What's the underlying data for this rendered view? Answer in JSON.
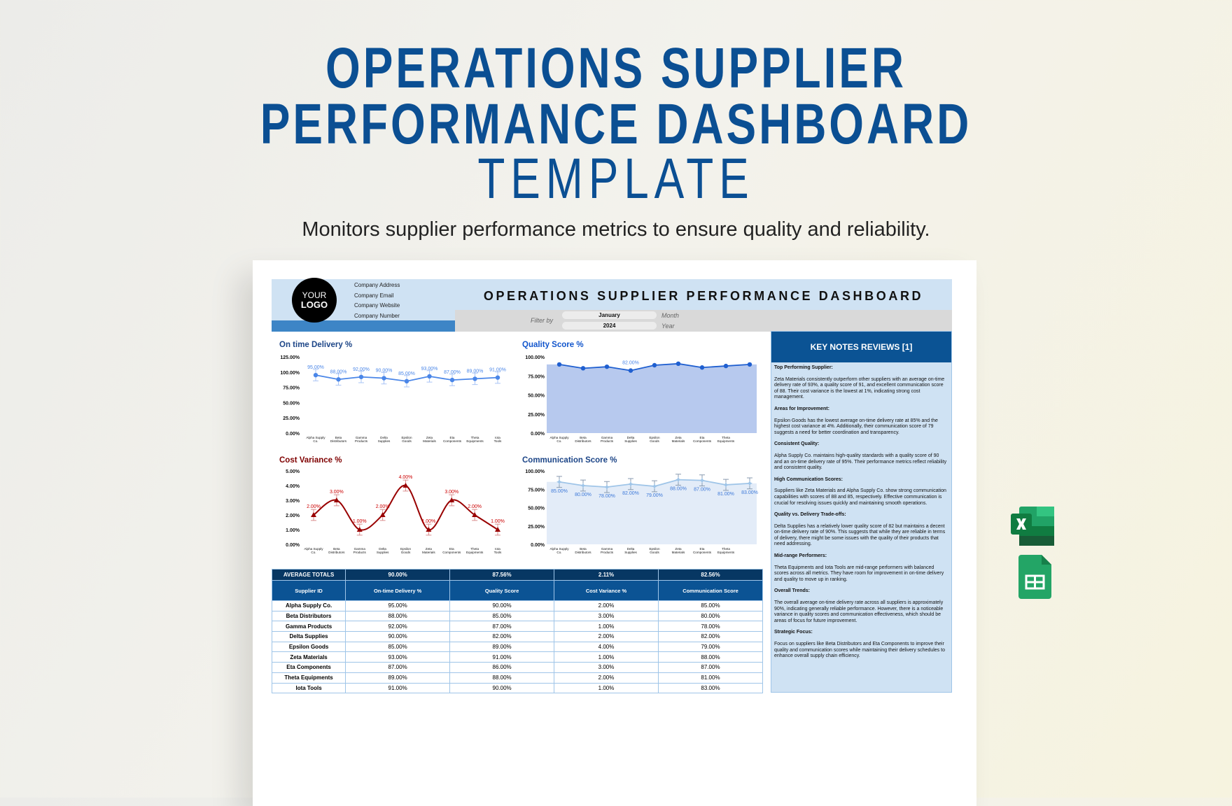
{
  "hero": {
    "title_line1": "OPERATIONS SUPPLIER",
    "title_line2": "PERFORMANCE DASHBOARD",
    "title_line3": "TEMPLATE",
    "subtitle": "Monitors supplier performance metrics to ensure quality and reliability."
  },
  "header": {
    "logo_line1": "YOUR",
    "logo_line2": "LOGO",
    "company": [
      "Company Address",
      "Company Email",
      "Company Website",
      "Company Number"
    ],
    "title": "OPERATIONS SUPPLIER PERFORMANCE DASHBOARD"
  },
  "filter": {
    "label": "Filter by",
    "month": "January",
    "month_label": "Month",
    "year": "2024",
    "year_label": "Year"
  },
  "colors": {
    "brand": "#0b5394",
    "header_bg": "#cfe2f3",
    "cost_red": "#990000",
    "quality_blue": "#1f5fd0"
  },
  "chart_data": [
    {
      "type": "line",
      "title": "On time Delivery %",
      "title_color": "#1c4587",
      "categories": [
        "Alpha Supply Co.",
        "Beta Distributors",
        "Gamma Products",
        "Delta Supplies",
        "Epsilon Goods",
        "Zeta Materials",
        "Eta Components",
        "Theta Equipments",
        "Iota Tools"
      ],
      "values": [
        95,
        88,
        92,
        90,
        85,
        93,
        87,
        89,
        91
      ],
      "ylim": [
        0,
        125
      ],
      "yticks": [
        "0.00%",
        "25.00%",
        "50.00%",
        "75.00%",
        "100.00%",
        "125.00%"
      ],
      "data_labels": [
        "95.00%",
        "88.00%",
        "92.00%",
        "90.00%",
        "85.00%",
        "93.00%",
        "87.00%",
        "89.00%",
        "91.00%"
      ],
      "error_bars": true,
      "color": "#4a86e8"
    },
    {
      "type": "area",
      "title": "Quality Score %",
      "title_color": "#1155cc",
      "categories": [
        "Alpha Supply Co.",
        "Beta Distributors",
        "Gamma Products",
        "Delta Supplies",
        "Epsilon Goods",
        "Zeta Materials",
        "Eta Components",
        "Theta Equipments",
        ""
      ],
      "values": [
        90,
        85,
        87,
        82,
        89,
        91,
        86,
        88,
        90
      ],
      "ylim": [
        0,
        100
      ],
      "yticks": [
        "0.00%",
        "25.00%",
        "50.00%",
        "75.00%",
        "100.00%"
      ],
      "data_labels": [
        "",
        "",
        "",
        "82.00%",
        "",
        "",
        "",
        "",
        ""
      ],
      "color": "#1f5fd0",
      "fill": "#b7c9ee"
    },
    {
      "type": "line",
      "title": "Cost Variance %",
      "title_color": "#7f0000",
      "categories": [
        "Alpha Supply Co.",
        "Beta Distributors",
        "Gamma Products",
        "Delta Supplies",
        "Epsilon Goods",
        "Zeta Materials",
        "Eta Components",
        "Theta Equipments",
        "Iota Tools"
      ],
      "values": [
        2,
        3,
        1,
        2,
        4,
        1,
        3,
        2,
        1
      ],
      "ylim": [
        0,
        5
      ],
      "yticks": [
        "0.00%",
        "1.00%",
        "2.00%",
        "3.00%",
        "4.00%",
        "5.00%"
      ],
      "data_labels": [
        "2.00%",
        "3.00%",
        "1.00%",
        "2.00%",
        "4.00%",
        "1.00%",
        "3.00%",
        "2.00%",
        "1.00%"
      ],
      "smooth": true,
      "error_bars": true,
      "marker": "triangle",
      "color": "#990000"
    },
    {
      "type": "area",
      "title": "Communication Score %",
      "title_color": "#1c4587",
      "categories": [
        "Alpha Supply Co.",
        "Beta Distributors",
        "Gamma Products",
        "Delta Supplies",
        "Epsilon Goods",
        "Zeta Materials",
        "Eta Components",
        "Theta Equipments",
        ""
      ],
      "values": [
        85,
        80,
        78,
        82,
        79,
        88,
        87,
        81,
        83
      ],
      "ylim": [
        0,
        100
      ],
      "yticks": [
        "0.00%",
        "25.00%",
        "50.00%",
        "75.00%",
        "100.00%"
      ],
      "data_labels": [
        "85.00%",
        "80.00%",
        "78.00%",
        "82.00%",
        "79.00%",
        "88.00%",
        "87.00%",
        "81.00%",
        "83.00%"
      ],
      "error_bars": true,
      "marker": "star",
      "color": "#9fc5e8",
      "fill": "#e3ecf8"
    }
  ],
  "table": {
    "averages": {
      "label": "AVERAGE TOTALS",
      "values": [
        "90.00%",
        "87.56%",
        "2.11%",
        "82.56%"
      ]
    },
    "columns": [
      "Supplier ID",
      "On-time Delivery %",
      "Quality Score",
      "Cost Variance %",
      "Communication Score"
    ],
    "rows": [
      [
        "Alpha Supply Co.",
        "95.00%",
        "90.00%",
        "2.00%",
        "85.00%"
      ],
      [
        "Beta Distributors",
        "88.00%",
        "85.00%",
        "3.00%",
        "80.00%"
      ],
      [
        "Gamma Products",
        "92.00%",
        "87.00%",
        "1.00%",
        "78.00%"
      ],
      [
        "Delta Supplies",
        "90.00%",
        "82.00%",
        "2.00%",
        "82.00%"
      ],
      [
        "Epsilon Goods",
        "85.00%",
        "89.00%",
        "4.00%",
        "79.00%"
      ],
      [
        "Zeta Materials",
        "93.00%",
        "91.00%",
        "1.00%",
        "88.00%"
      ],
      [
        "Eta Components",
        "87.00%",
        "86.00%",
        "3.00%",
        "87.00%"
      ],
      [
        "Theta Equipments",
        "89.00%",
        "88.00%",
        "2.00%",
        "81.00%"
      ],
      [
        "Iota Tools",
        "91.00%",
        "90.00%",
        "1.00%",
        "83.00%"
      ]
    ]
  },
  "notes": {
    "title": "KEY NOTES REVIEWS [1]",
    "sections": [
      {
        "heading": "Top Performing Supplier:",
        "text": "Zeta Materials consistently outperform other suppliers with an average on-time delivery rate of 93%, a quality score of 91, and excellent communication score of 88. Their cost variance is the lowest at 1%, indicating strong cost management."
      },
      {
        "heading": "Areas for Improvement:",
        "text": "Epsilon Goods has the lowest average on-time delivery rate at 85% and the highest cost variance at 4%. Additionally, their communication score of 79 suggests a need for better coordination and transparency."
      },
      {
        "heading": "Consistent Quality:",
        "text": "Alpha Supply Co. maintains high-quality standards with a quality score of 90 and an on-time delivery rate of 95%. Their performance metrics reflect reliability and consistent quality."
      },
      {
        "heading": "High Communication Scores:",
        "text": "Suppliers like Zeta Materials and Alpha Supply Co. show strong communication capabilities with scores of 88 and 85, respectively. Effective communication is crucial for resolving issues quickly and maintaining smooth operations."
      },
      {
        "heading": "Quality vs. Delivery Trade-offs:",
        "text": "Delta Supplies has a relatively lower quality score of 82 but maintains a decent on-time delivery rate of 90%. This suggests that while they are reliable in terms of delivery, there might be some issues with the quality of their products that need addressing."
      },
      {
        "heading": "Mid-range Performers:",
        "text": "Theta Equipments and Iota Tools are mid-range performers with balanced scores across all metrics. They have room for improvement in on-time delivery and quality to move up in ranking."
      },
      {
        "heading": "Overall Trends:",
        "text": "The overall average on-time delivery rate across all suppliers is approximately 90%, indicating generally reliable performance. However, there is a noticeable variance in quality scores and communication effectiveness, which should be areas of focus for future improvement."
      },
      {
        "heading": "Strategic Focus:",
        "text": "Focus on suppliers like Beta Distributors and Eta Components to improve their quality and communication scores while maintaining their delivery schedules to enhance overall supply chain efficiency."
      }
    ]
  },
  "icons": {
    "excel": "excel-icon",
    "sheets": "google-sheets-icon"
  }
}
